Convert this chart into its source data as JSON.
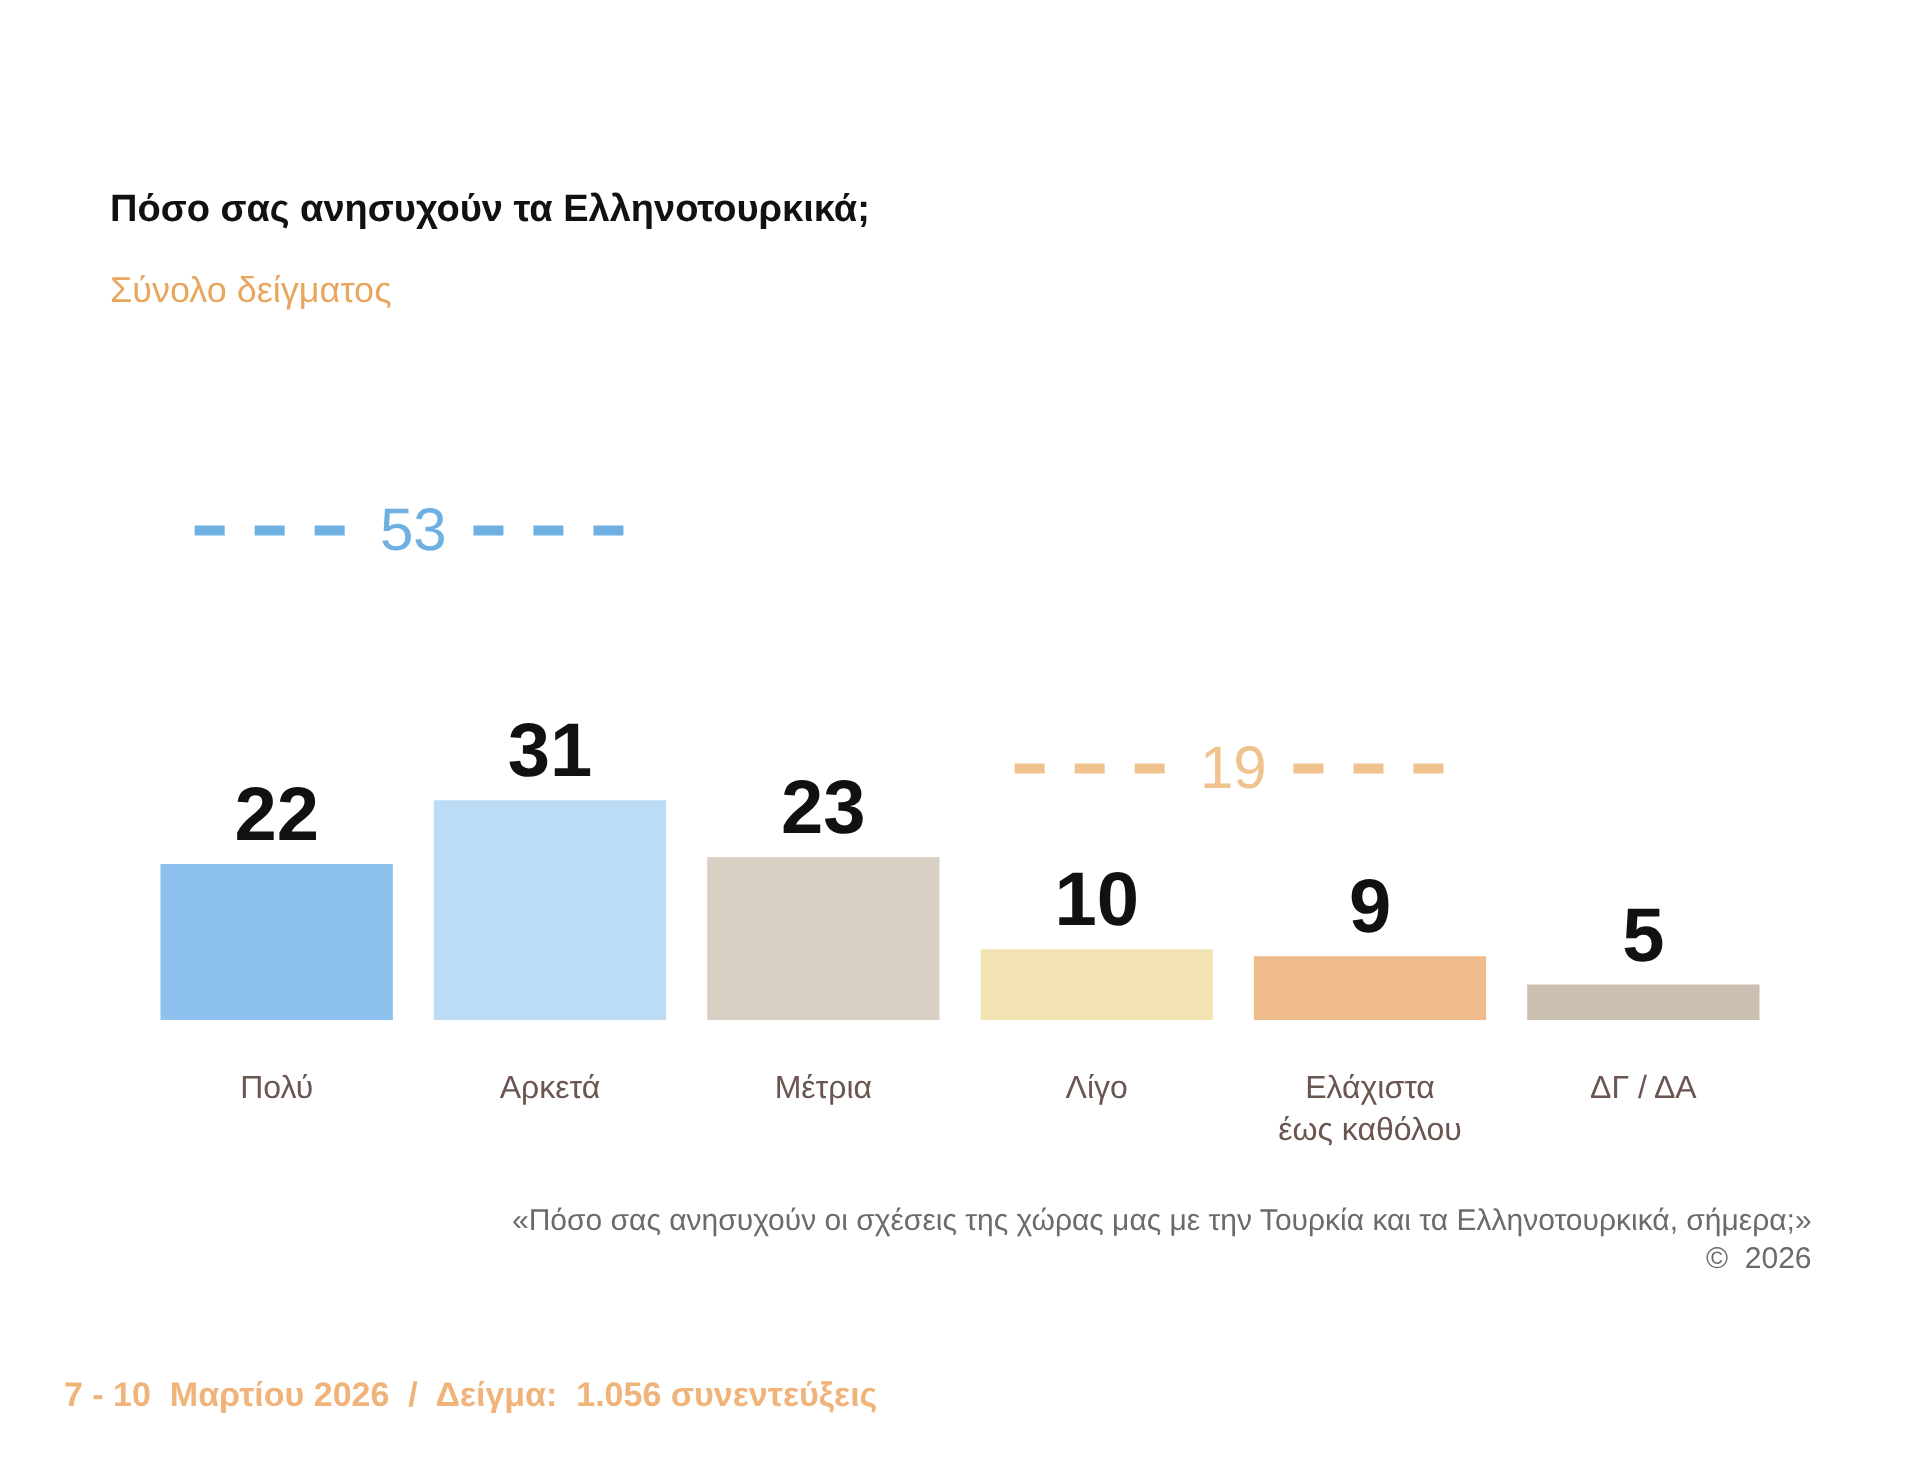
{
  "chart_data": {
    "type": "bar",
    "title": "Πόσο σας ανησυχούν τα Ελληνοτουρκικά;",
    "subtitle": "Σύνολο δείγματος",
    "categories": [
      "Πολύ",
      "Αρκετά",
      "Μέτρια",
      "Λίγο",
      "Ελάχιστα έως καθόλου",
      "ΔΓ / ΔΑ"
    ],
    "values": [
      22,
      31,
      23,
      10,
      9,
      5
    ],
    "colors": [
      "#8ec2ee",
      "#bcdcf6",
      "#d9d0c4",
      "#f1e3b2",
      "#f0bb8c",
      "#cbbfb2"
    ],
    "data_labels": true,
    "annotations": [
      "53",
      "19",
      "«Πόσο σας ανησυχούν οι σχέσεις της χώρας μας με την Τουρκία και τα Ελληνοτουρκικά, σήμερα;»",
      "©  2026",
      "7 - 10  Μαρτίου 2026  /  Δείγμα:  1.056 συνεντεύξεις"
    ],
    "grid": false,
    "legend": false
  }
}
